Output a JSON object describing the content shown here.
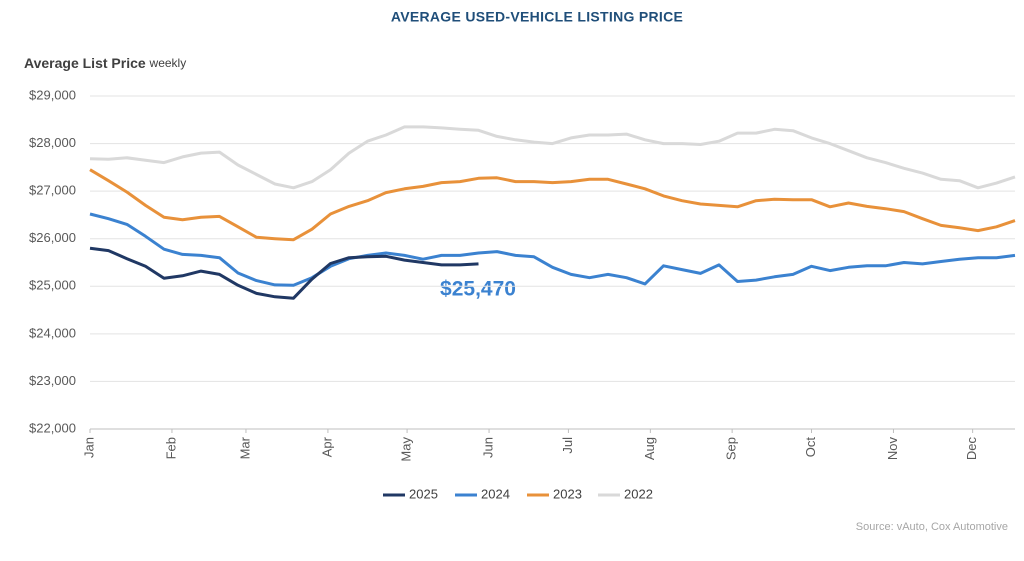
{
  "chart_data": {
    "type": "line",
    "title": "AVERAGE USED-VEHICLE LISTING PRICE",
    "y_label": "Average List Price",
    "y_label_note": "weekly",
    "annotation": "$25,470",
    "source": "Source: vAuto, Cox Automotive",
    "x": [
      0,
      1,
      2,
      3,
      4,
      5,
      6,
      7,
      8,
      9,
      10,
      11,
      12,
      13,
      14,
      15,
      16,
      17,
      18,
      19,
      20,
      21,
      22,
      23,
      24,
      25,
      26,
      27,
      28,
      29,
      30,
      31,
      32,
      33,
      34,
      35,
      36,
      37,
      38,
      39,
      40,
      41,
      42,
      43,
      44,
      45,
      46,
      47,
      48,
      49,
      50
    ],
    "xlim": [
      0,
      50
    ],
    "xticks": [
      {
        "value": 0,
        "label": "Jan"
      },
      {
        "value": 4.43,
        "label": "Feb"
      },
      {
        "value": 8.43,
        "label": "Mar"
      },
      {
        "value": 12.86,
        "label": "Apr"
      },
      {
        "value": 17.14,
        "label": "May"
      },
      {
        "value": 21.57,
        "label": "Jun"
      },
      {
        "value": 25.86,
        "label": "Jul"
      },
      {
        "value": 30.29,
        "label": "Aug"
      },
      {
        "value": 34.71,
        "label": "Sep"
      },
      {
        "value": 39,
        "label": "Oct"
      },
      {
        "value": 43.43,
        "label": "Nov"
      },
      {
        "value": 47.71,
        "label": "Dec"
      }
    ],
    "ylim": [
      22000,
      29000
    ],
    "yticks": [
      {
        "value": 22000,
        "label": "$22,000"
      },
      {
        "value": 23000,
        "label": "$23,000"
      },
      {
        "value": 24000,
        "label": "$24,000"
      },
      {
        "value": 25000,
        "label": "$25,000"
      },
      {
        "value": 26000,
        "label": "$26,000"
      },
      {
        "value": 27000,
        "label": "$27,000"
      },
      {
        "value": 28000,
        "label": "$28,000"
      },
      {
        "value": 29000,
        "label": "$29,000"
      }
    ],
    "grid": true,
    "series": [
      {
        "name": "2025",
        "color": "#203864",
        "values": [
          25800,
          25750,
          25580,
          25420,
          25170,
          25220,
          25320,
          25250,
          25020,
          24850,
          24780,
          24750,
          25150,
          25480,
          25600,
          25620,
          25630,
          25550,
          25500,
          25450,
          25450,
          25470,
          null,
          null,
          null,
          null,
          null,
          null,
          null,
          null,
          null,
          null,
          null,
          null,
          null,
          null,
          null,
          null,
          null,
          null,
          null,
          null,
          null,
          null,
          null,
          null,
          null,
          null,
          null,
          null,
          null
        ]
      },
      {
        "name": "2024",
        "color": "#3b82d0",
        "values": [
          26520,
          26420,
          26300,
          26050,
          25780,
          25670,
          25650,
          25600,
          25280,
          25120,
          25030,
          25020,
          25180,
          25420,
          25580,
          25650,
          25700,
          25650,
          25570,
          25650,
          25650,
          25700,
          25730,
          25650,
          25620,
          25400,
          25250,
          25180,
          25250,
          25180,
          25050,
          25430,
          25350,
          25270,
          25450,
          25100,
          25130,
          25200,
          25250,
          25420,
          25330,
          25400,
          25430,
          25430,
          25500,
          25470,
          25520,
          25570,
          25600,
          25600,
          25650
        ]
      },
      {
        "name": "2023",
        "color": "#e8913a",
        "values": [
          27450,
          27220,
          26980,
          26700,
          26450,
          26400,
          26450,
          26470,
          26250,
          26030,
          26000,
          25980,
          26200,
          26520,
          26680,
          26800,
          26970,
          27050,
          27100,
          27180,
          27200,
          27270,
          27280,
          27200,
          27200,
          27180,
          27200,
          27250,
          27250,
          27150,
          27050,
          26900,
          26800,
          26730,
          26700,
          26670,
          26800,
          26830,
          26820,
          26820,
          26670,
          26750,
          26680,
          26630,
          26570,
          26420,
          26280,
          26230,
          26170,
          26250,
          26380
        ]
      },
      {
        "name": "2022",
        "color": "#d9d9d9",
        "values": [
          27680,
          27670,
          27700,
          27650,
          27600,
          27720,
          27800,
          27820,
          27550,
          27350,
          27150,
          27070,
          27200,
          27450,
          27800,
          28050,
          28180,
          28350,
          28350,
          28330,
          28300,
          28280,
          28150,
          28080,
          28030,
          28000,
          28120,
          28180,
          28180,
          28200,
          28080,
          28000,
          28000,
          27980,
          28050,
          28220,
          28220,
          28300,
          28270,
          28120,
          28000,
          27850,
          27700,
          27600,
          27480,
          27380,
          27250,
          27220,
          27070,
          27170,
          27300
        ]
      }
    ]
  }
}
